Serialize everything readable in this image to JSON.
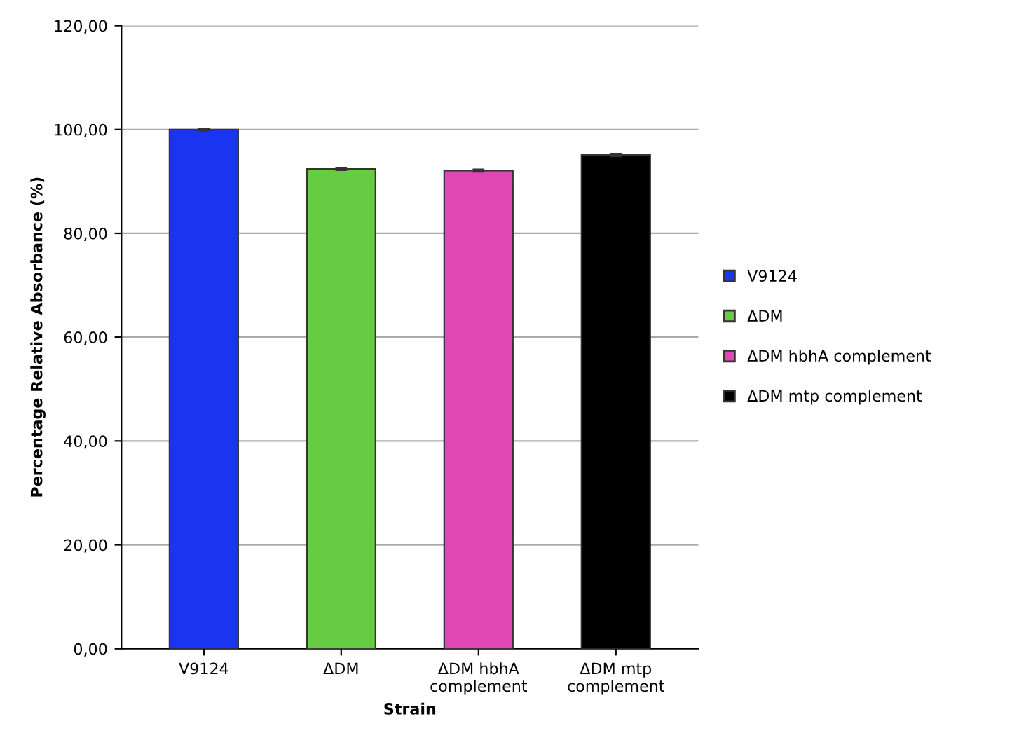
{
  "chart_data": {
    "type": "bar",
    "xlabel": "Strain",
    "ylabel": "Percentage Relative Absorbance (%)",
    "categories": [
      "V9124",
      "ΔDM",
      "ΔDM hbhA\ncomplement",
      "ΔDM mtp\ncomplement"
    ],
    "series": [
      {
        "name": "V9124",
        "color": "#1a35f0",
        "values": [
          100.0,
          null,
          null,
          null
        ],
        "errors": [
          0.2,
          null,
          null,
          null
        ]
      },
      {
        "name": "ΔDM",
        "color": "#66cc44",
        "values": [
          null,
          92.4,
          null,
          null
        ],
        "errors": [
          null,
          0.2,
          null,
          null
        ]
      },
      {
        "name": "ΔDM hbhA complement",
        "color": "#e046b4",
        "values": [
          null,
          null,
          92.1,
          null
        ],
        "errors": [
          null,
          null,
          0.2,
          null
        ]
      },
      {
        "name": "ΔDM mtp complement",
        "color": "#000000",
        "values": [
          null,
          null,
          null,
          95.1
        ],
        "errors": [
          null,
          null,
          null,
          0.2
        ]
      }
    ],
    "ylim": [
      0,
      120
    ],
    "yticks": [
      {
        "value": 0,
        "label": "0,00"
      },
      {
        "value": 20,
        "label": "20,00"
      },
      {
        "value": 40,
        "label": "40,00"
      },
      {
        "value": 60,
        "label": "60,00"
      },
      {
        "value": 80,
        "label": "80,00"
      },
      {
        "value": 100,
        "label": "100,00"
      },
      {
        "value": 120,
        "label": "120,00"
      }
    ],
    "grid": "y",
    "legend": "right"
  }
}
